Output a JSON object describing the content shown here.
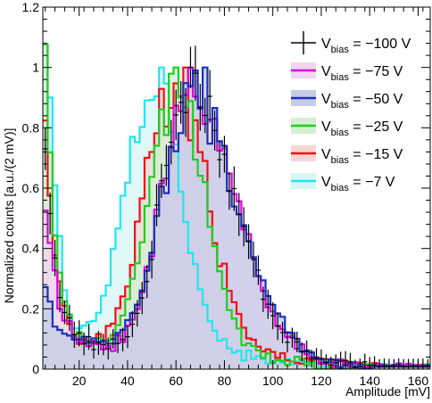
{
  "chart_data": {
    "type": "histogram",
    "xlabel": "Amplitude [mV]",
    "ylabel": "Normalized counts [a.u./(2 mV)]",
    "xlim": [
      5,
      165
    ],
    "ylim": [
      0,
      1.2
    ],
    "x_ticks": [
      20,
      40,
      60,
      80,
      100,
      120,
      140,
      160
    ],
    "x_tick_labels": [
      "20",
      "40",
      "60",
      "80",
      "100",
      "120",
      "140",
      "160"
    ],
    "y_ticks": [
      0,
      0.2,
      0.4,
      0.6,
      0.8,
      1,
      1.2
    ],
    "y_tick_labels": [
      "0",
      "0.2",
      "0.4",
      "0.6",
      "0.8",
      "1",
      "1.2"
    ],
    "bin_width_mV": 2,
    "legend_position": "top-right",
    "series": [
      {
        "name": "V_bias = −100 V",
        "legend_main": "V",
        "legend_sub": "bias",
        "legend_value": " = −100 V",
        "color": "#000000",
        "fill": "none",
        "style": "errorbar",
        "peak": 64,
        "peak_width_left": 10,
        "peak_width_right": 19,
        "peak_height": 1.0,
        "noise_amp": 0.75,
        "noise_decay": 5,
        "floor": 0.08,
        "tail": 0.0,
        "tail_decay": 30,
        "spike": 0.04
      },
      {
        "name": "V_bias = −75 V",
        "legend_main": "V",
        "legend_sub": "bias",
        "legend_value": " = −75 V",
        "color": "#e000e0",
        "fill": "#f1d6f1",
        "style": "step",
        "peak": 65,
        "peak_width_left": 11,
        "peak_width_right": 19,
        "peak_height": 1.0,
        "noise_amp": 0.6,
        "noise_decay": 5,
        "floor": 0.08,
        "tail": 0.0,
        "tail_decay": 30,
        "spike": 0.05
      },
      {
        "name": "V_bias = −50 V",
        "legend_main": "V",
        "legend_sub": "bias",
        "legend_value": " = −50 V",
        "color": "#1a2fbf",
        "fill": "#c6cbe6",
        "style": "step",
        "peak": 66,
        "peak_width_left": 12,
        "peak_width_right": 19,
        "peak_height": 1.0,
        "noise_amp": 0.26,
        "noise_decay": 5,
        "floor": 0.1,
        "tail": 0.0,
        "tail_decay": 30,
        "spike": 0.06
      },
      {
        "name": "V_bias = −25 V",
        "legend_main": "V",
        "legend_sub": "bias",
        "legend_value": " = −25 V",
        "color": "#22cc22",
        "fill": "#d3f0d3",
        "style": "step",
        "peak": 59,
        "peak_width_left": 11,
        "peak_width_right": 12,
        "peak_height": 1.0,
        "noise_amp": 1.2,
        "noise_decay": 4.5,
        "floor": 0.07,
        "tail": 0.0,
        "tail_decay": 30,
        "spike": 0.05
      },
      {
        "name": "V_bias = −15 V",
        "legend_main": "V",
        "legend_sub": "bias",
        "legend_value": " = −15 V",
        "color": "#ee1111",
        "fill": "#f6d6d6",
        "style": "step",
        "peak": 58,
        "peak_width_left": 11,
        "peak_width_right": 14,
        "peak_height": 1.0,
        "noise_amp": 0.95,
        "noise_decay": 4.5,
        "floor": 0.08,
        "tail": 0.0,
        "tail_decay": 30,
        "spike": 0.05
      },
      {
        "name": "V_bias = −7 V",
        "legend_main": "V",
        "legend_sub": "bias",
        "legend_value": " = −7 V",
        "color": "#22e6ee",
        "fill": "#d6f6f6",
        "style": "step",
        "peak": 51,
        "peak_width_left": 12,
        "peak_width_right": 11,
        "peak_height": 1.0,
        "noise_amp": 1.6,
        "noise_decay": 4.5,
        "floor": 0.07,
        "tail": 0.0,
        "tail_decay": 30,
        "spike": 0.05
      }
    ]
  }
}
